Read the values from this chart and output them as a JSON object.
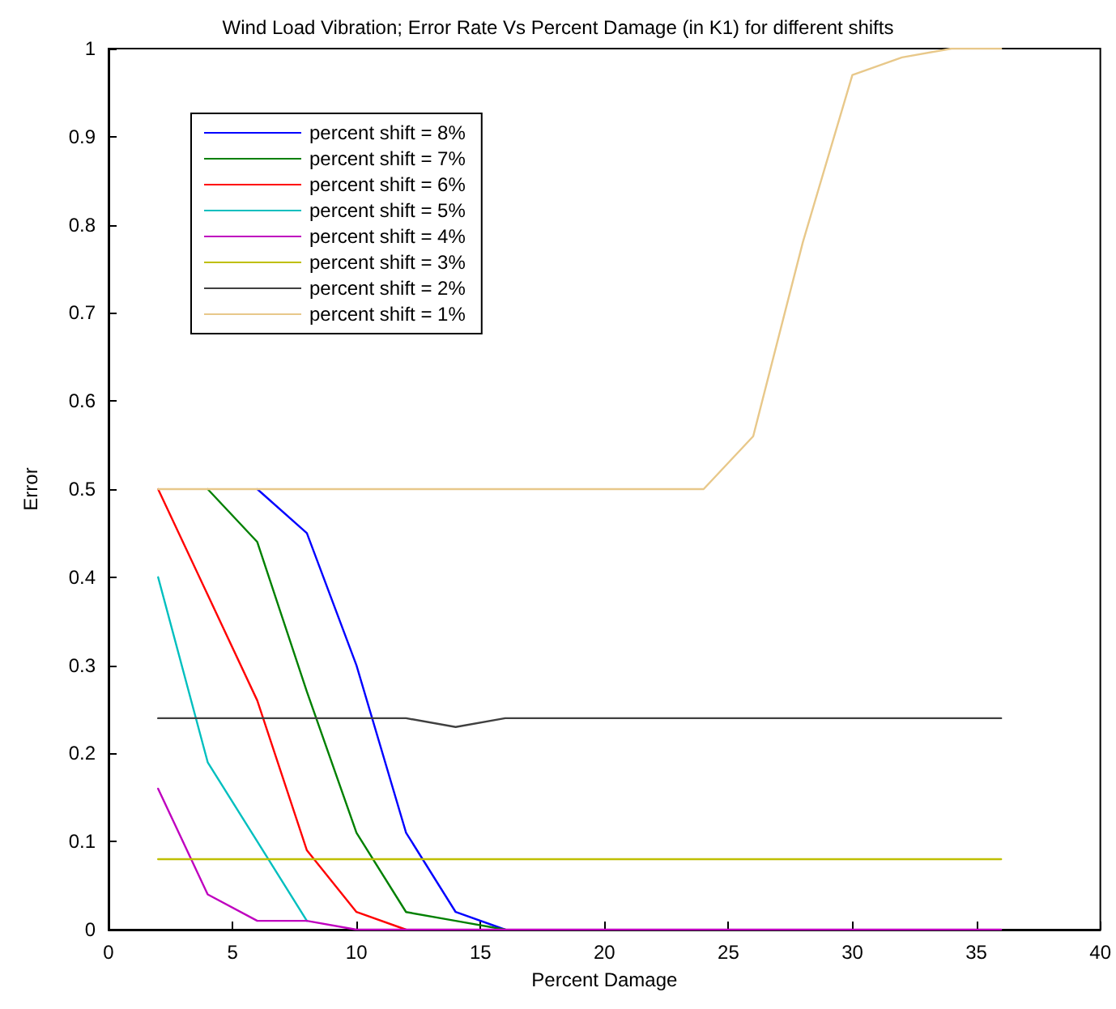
{
  "chart_data": {
    "type": "line",
    "title": "Wind Load Vibration; Error Rate Vs Percent Damage (in K1) for different shifts",
    "xlabel": "Percent Damage",
    "ylabel": "Error",
    "xlim": [
      0,
      40
    ],
    "xticks": [
      0,
      5,
      10,
      15,
      20,
      25,
      30,
      35,
      40
    ],
    "ylim": [
      0,
      1
    ],
    "yticks": [
      0,
      0.1,
      0.2,
      0.3,
      0.4,
      0.5,
      0.6,
      0.7,
      0.8,
      0.9,
      1
    ],
    "grid": false,
    "legend": "top left",
    "line_style": "solid",
    "marker": "none",
    "series": [
      {
        "name": "percent shift = 8%",
        "color": "#0000ff",
        "x": [
          6,
          8,
          10,
          12,
          14,
          16
        ],
        "values": [
          0.5,
          0.45,
          0.3,
          0.11,
          0.02,
          0
        ]
      },
      {
        "name": "percent shift = 7%",
        "color": "#008000",
        "x": [
          4,
          6,
          8,
          10,
          12,
          14,
          16
        ],
        "values": [
          0.5,
          0.44,
          0.27,
          0.11,
          0.02,
          0.01,
          0
        ]
      },
      {
        "name": "percent shift = 6%",
        "color": "#ff0000",
        "x": [
          2,
          4,
          6,
          8,
          10,
          12
        ],
        "values": [
          0.5,
          0.38,
          0.26,
          0.09,
          0.02,
          0
        ]
      },
      {
        "name": "percent shift = 5%",
        "color": "#00bfbf",
        "x": [
          2,
          4,
          6,
          8
        ],
        "values": [
          0.4,
          0.19,
          0.1,
          0.01
        ]
      },
      {
        "name": "percent shift = 4%",
        "color": "#bf00bf",
        "x": [
          2,
          4,
          6,
          8,
          10,
          12,
          14,
          16,
          18,
          20,
          22,
          24,
          26,
          28,
          30,
          32,
          34,
          36
        ],
        "values": [
          0.16,
          0.04,
          0.01,
          0.01,
          0,
          0,
          0,
          0,
          0,
          0,
          0,
          0,
          0,
          0,
          0,
          0,
          0,
          0
        ]
      },
      {
        "name": "percent shift = 3%",
        "color": "#bfbf00",
        "x": [
          2,
          36
        ],
        "values": [
          0.08,
          0.08
        ]
      },
      {
        "name": "percent shift = 2%",
        "color": "#404040",
        "x": [
          2,
          4,
          6,
          8,
          10,
          12,
          14,
          16,
          18,
          20,
          22,
          24,
          26,
          28,
          30,
          32,
          34,
          36
        ],
        "values": [
          0.24,
          0.24,
          0.24,
          0.24,
          0.24,
          0.24,
          0.23,
          0.24,
          0.24,
          0.24,
          0.24,
          0.24,
          0.24,
          0.24,
          0.24,
          0.24,
          0.24,
          0.24
        ]
      },
      {
        "name": "percent shift = 1%",
        "color": "#e8c88a",
        "x": [
          2,
          4,
          6,
          8,
          10,
          12,
          14,
          16,
          18,
          20,
          22,
          24,
          26,
          28,
          30,
          32,
          34,
          36
        ],
        "values": [
          0.5,
          0.5,
          0.5,
          0.5,
          0.5,
          0.5,
          0.5,
          0.5,
          0.5,
          0.5,
          0.5,
          0.5,
          0.56,
          0.78,
          0.97,
          0.99,
          1,
          1
        ]
      }
    ]
  }
}
